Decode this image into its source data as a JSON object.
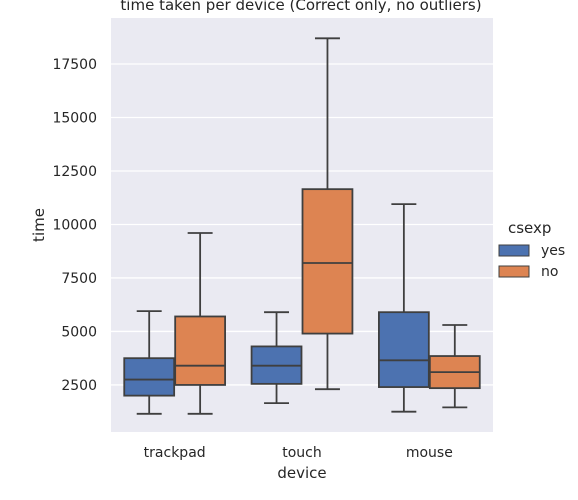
{
  "chart_data": {
    "type": "box",
    "title": "time taken per device (Correct only, no outliers)",
    "xlabel": "device",
    "ylabel": "time",
    "categories": [
      "trackpad",
      "touch",
      "mouse"
    ],
    "ylim": [
      300,
      19650
    ],
    "yticks": [
      2500,
      5000,
      7500,
      10000,
      12500,
      15000,
      17500
    ],
    "grid": true,
    "legend": {
      "title": "csexp",
      "placement": "right",
      "entries": [
        "yes",
        "no"
      ]
    },
    "series": [
      {
        "name": "yes",
        "color": "#4c72b0",
        "boxes": [
          {
            "whislo": 1150,
            "q1": 2000,
            "med": 2750,
            "q3": 3750,
            "whishi": 5950
          },
          {
            "whislo": 1650,
            "q1": 2550,
            "med": 3400,
            "q3": 4300,
            "whishi": 5900
          },
          {
            "whislo": 1250,
            "q1": 2400,
            "med": 3650,
            "q3": 5900,
            "whishi": 10950
          }
        ]
      },
      {
        "name": "no",
        "color": "#dd8452",
        "boxes": [
          {
            "whislo": 1150,
            "q1": 2500,
            "med": 3400,
            "q3": 5700,
            "whishi": 9600
          },
          {
            "whislo": 2300,
            "q1": 4900,
            "med": 8200,
            "q3": 11650,
            "whishi": 18700
          },
          {
            "whislo": 1450,
            "q1": 2350,
            "med": 3100,
            "q3": 3850,
            "whishi": 5300
          }
        ]
      }
    ]
  }
}
